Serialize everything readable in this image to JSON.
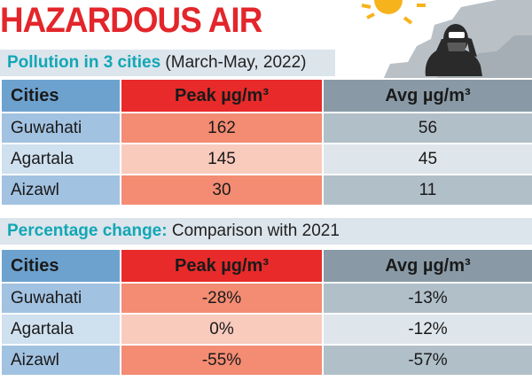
{
  "title": "HAZARDOUS AIR",
  "section1": {
    "highlight": "Pollution in 3 cities",
    "subtitle": " (March-May, 2022)",
    "headers": {
      "city": "Cities",
      "peak": "Peak µg/m³",
      "avg": "Avg µg/m³"
    },
    "rows": [
      {
        "city": "Guwahati",
        "peak": "162",
        "avg": "56"
      },
      {
        "city": "Agartala",
        "peak": "145",
        "avg": "45"
      },
      {
        "city": "Aizawl",
        "peak": "30",
        "avg": "11"
      }
    ]
  },
  "section2": {
    "highlight": "Percentage change:",
    "subtitle": " Comparison with 2021",
    "headers": {
      "city": "Cities",
      "peak": "Peak µg/m³",
      "avg": "Avg µg/m³"
    },
    "rows": [
      {
        "city": "Guwahati",
        "peak": "-28%",
        "avg": "-13%"
      },
      {
        "city": "Agartala",
        "peak": "0%",
        "avg": "-12%"
      },
      {
        "city": "Aizawl",
        "peak": "-55%",
        "avg": "-57%"
      }
    ]
  },
  "colors": {
    "title": "#e3262b",
    "section_highlight": "#11a7b5",
    "city_header": "#6da2cf",
    "peak_header": "#e82a2a",
    "avg_header": "#899aa6"
  },
  "icons": [
    "sun-icon",
    "smog-cloud-icon",
    "masked-person-icon"
  ]
}
